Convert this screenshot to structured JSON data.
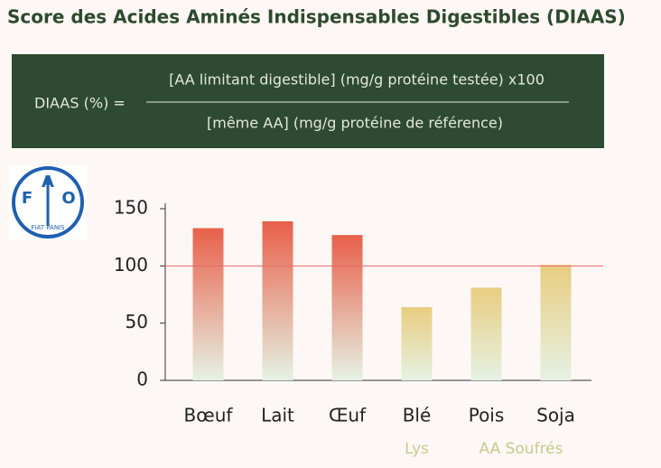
{
  "chart_data": {
    "type": "bar",
    "title": "Score des Acides Aminés Indispensables Digestibles (DIAAS)",
    "formula": {
      "lhs": "DIAAS (%) =",
      "numerator": "[AA limitant digestible] (mg/g protéine testée) x100",
      "denominator": "[même AA] (mg/g protéine de référence)"
    },
    "logo": {
      "letters": [
        "F",
        "A",
        "O"
      ],
      "motto": "FIAT PANIS"
    },
    "categories": [
      "Bœuf",
      "Lait",
      "Œuf",
      "Blé",
      "Pois",
      "Soja"
    ],
    "values": [
      133,
      139,
      127,
      64,
      81,
      101
    ],
    "colors": [
      "#e8604a",
      "#e8604a",
      "#e8604a",
      "#e8cd80",
      "#e8cd80",
      "#e8cd80"
    ],
    "annotations": [
      "Lys",
      "AA Soufrés"
    ],
    "reference_line": 100,
    "reference_color": "#e86a6a",
    "ylim": [
      0,
      150
    ],
    "yticks": [
      0,
      50,
      100,
      150
    ],
    "grid": false
  }
}
